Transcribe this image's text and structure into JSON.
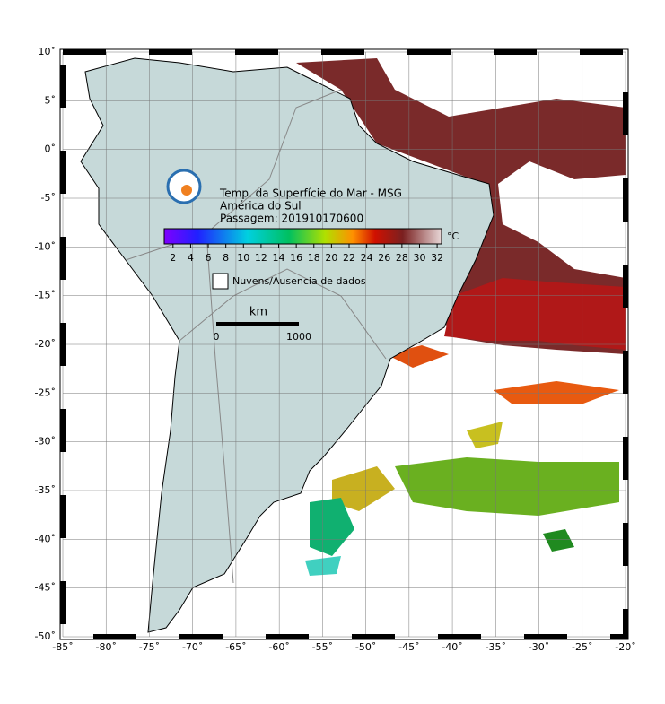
{
  "map": {
    "xlim": [
      -85,
      -20
    ],
    "ylim": [
      -50,
      10
    ],
    "xticks": [
      {
        "value": -85,
        "label": "-85˚"
      },
      {
        "value": -80,
        "label": "-80˚"
      },
      {
        "value": -75,
        "label": "-75˚"
      },
      {
        "value": -70,
        "label": "-70˚"
      },
      {
        "value": -65,
        "label": "-65˚"
      },
      {
        "value": -60,
        "label": "-60˚"
      },
      {
        "value": -55,
        "label": "-55˚"
      },
      {
        "value": -50,
        "label": "-50˚"
      },
      {
        "value": -45,
        "label": "-45˚"
      },
      {
        "value": -40,
        "label": "-40˚"
      },
      {
        "value": -35,
        "label": "-35˚"
      },
      {
        "value": -30,
        "label": "-30˚"
      },
      {
        "value": -25,
        "label": "-25˚"
      },
      {
        "value": -20,
        "label": "-20˚"
      }
    ],
    "yticks": [
      {
        "value": 10,
        "label": "10˚"
      },
      {
        "value": 5,
        "label": "5˚"
      },
      {
        "value": 0,
        "label": "0˚"
      },
      {
        "value": -5,
        "label": "-5˚"
      },
      {
        "value": -10,
        "label": "-10˚"
      },
      {
        "value": -15,
        "label": "-15˚"
      },
      {
        "value": -20,
        "label": "-20˚"
      },
      {
        "value": -25,
        "label": "-25˚"
      },
      {
        "value": -30,
        "label": "-30˚"
      },
      {
        "value": -35,
        "label": "-35˚"
      },
      {
        "value": -40,
        "label": "-40˚"
      },
      {
        "value": -45,
        "label": "-45˚"
      },
      {
        "value": -50,
        "label": "-50˚"
      }
    ],
    "grid": true
  },
  "title_lines": [
    "Temp. da Superfície do Mar - MSG",
    "América do Sul",
    "Passagem: 201910170600"
  ],
  "colorbar": {
    "lim": [
      1,
      32.5
    ],
    "ticks": [
      2,
      4,
      6,
      8,
      10,
      12,
      14,
      16,
      18,
      20,
      22,
      24,
      26,
      28,
      30,
      32
    ],
    "unit": "°C"
  },
  "legend": {
    "label": "Nuvens/Ausencia de dados"
  },
  "scale_bar": {
    "unit": "km",
    "start": "0",
    "end": "1000"
  }
}
